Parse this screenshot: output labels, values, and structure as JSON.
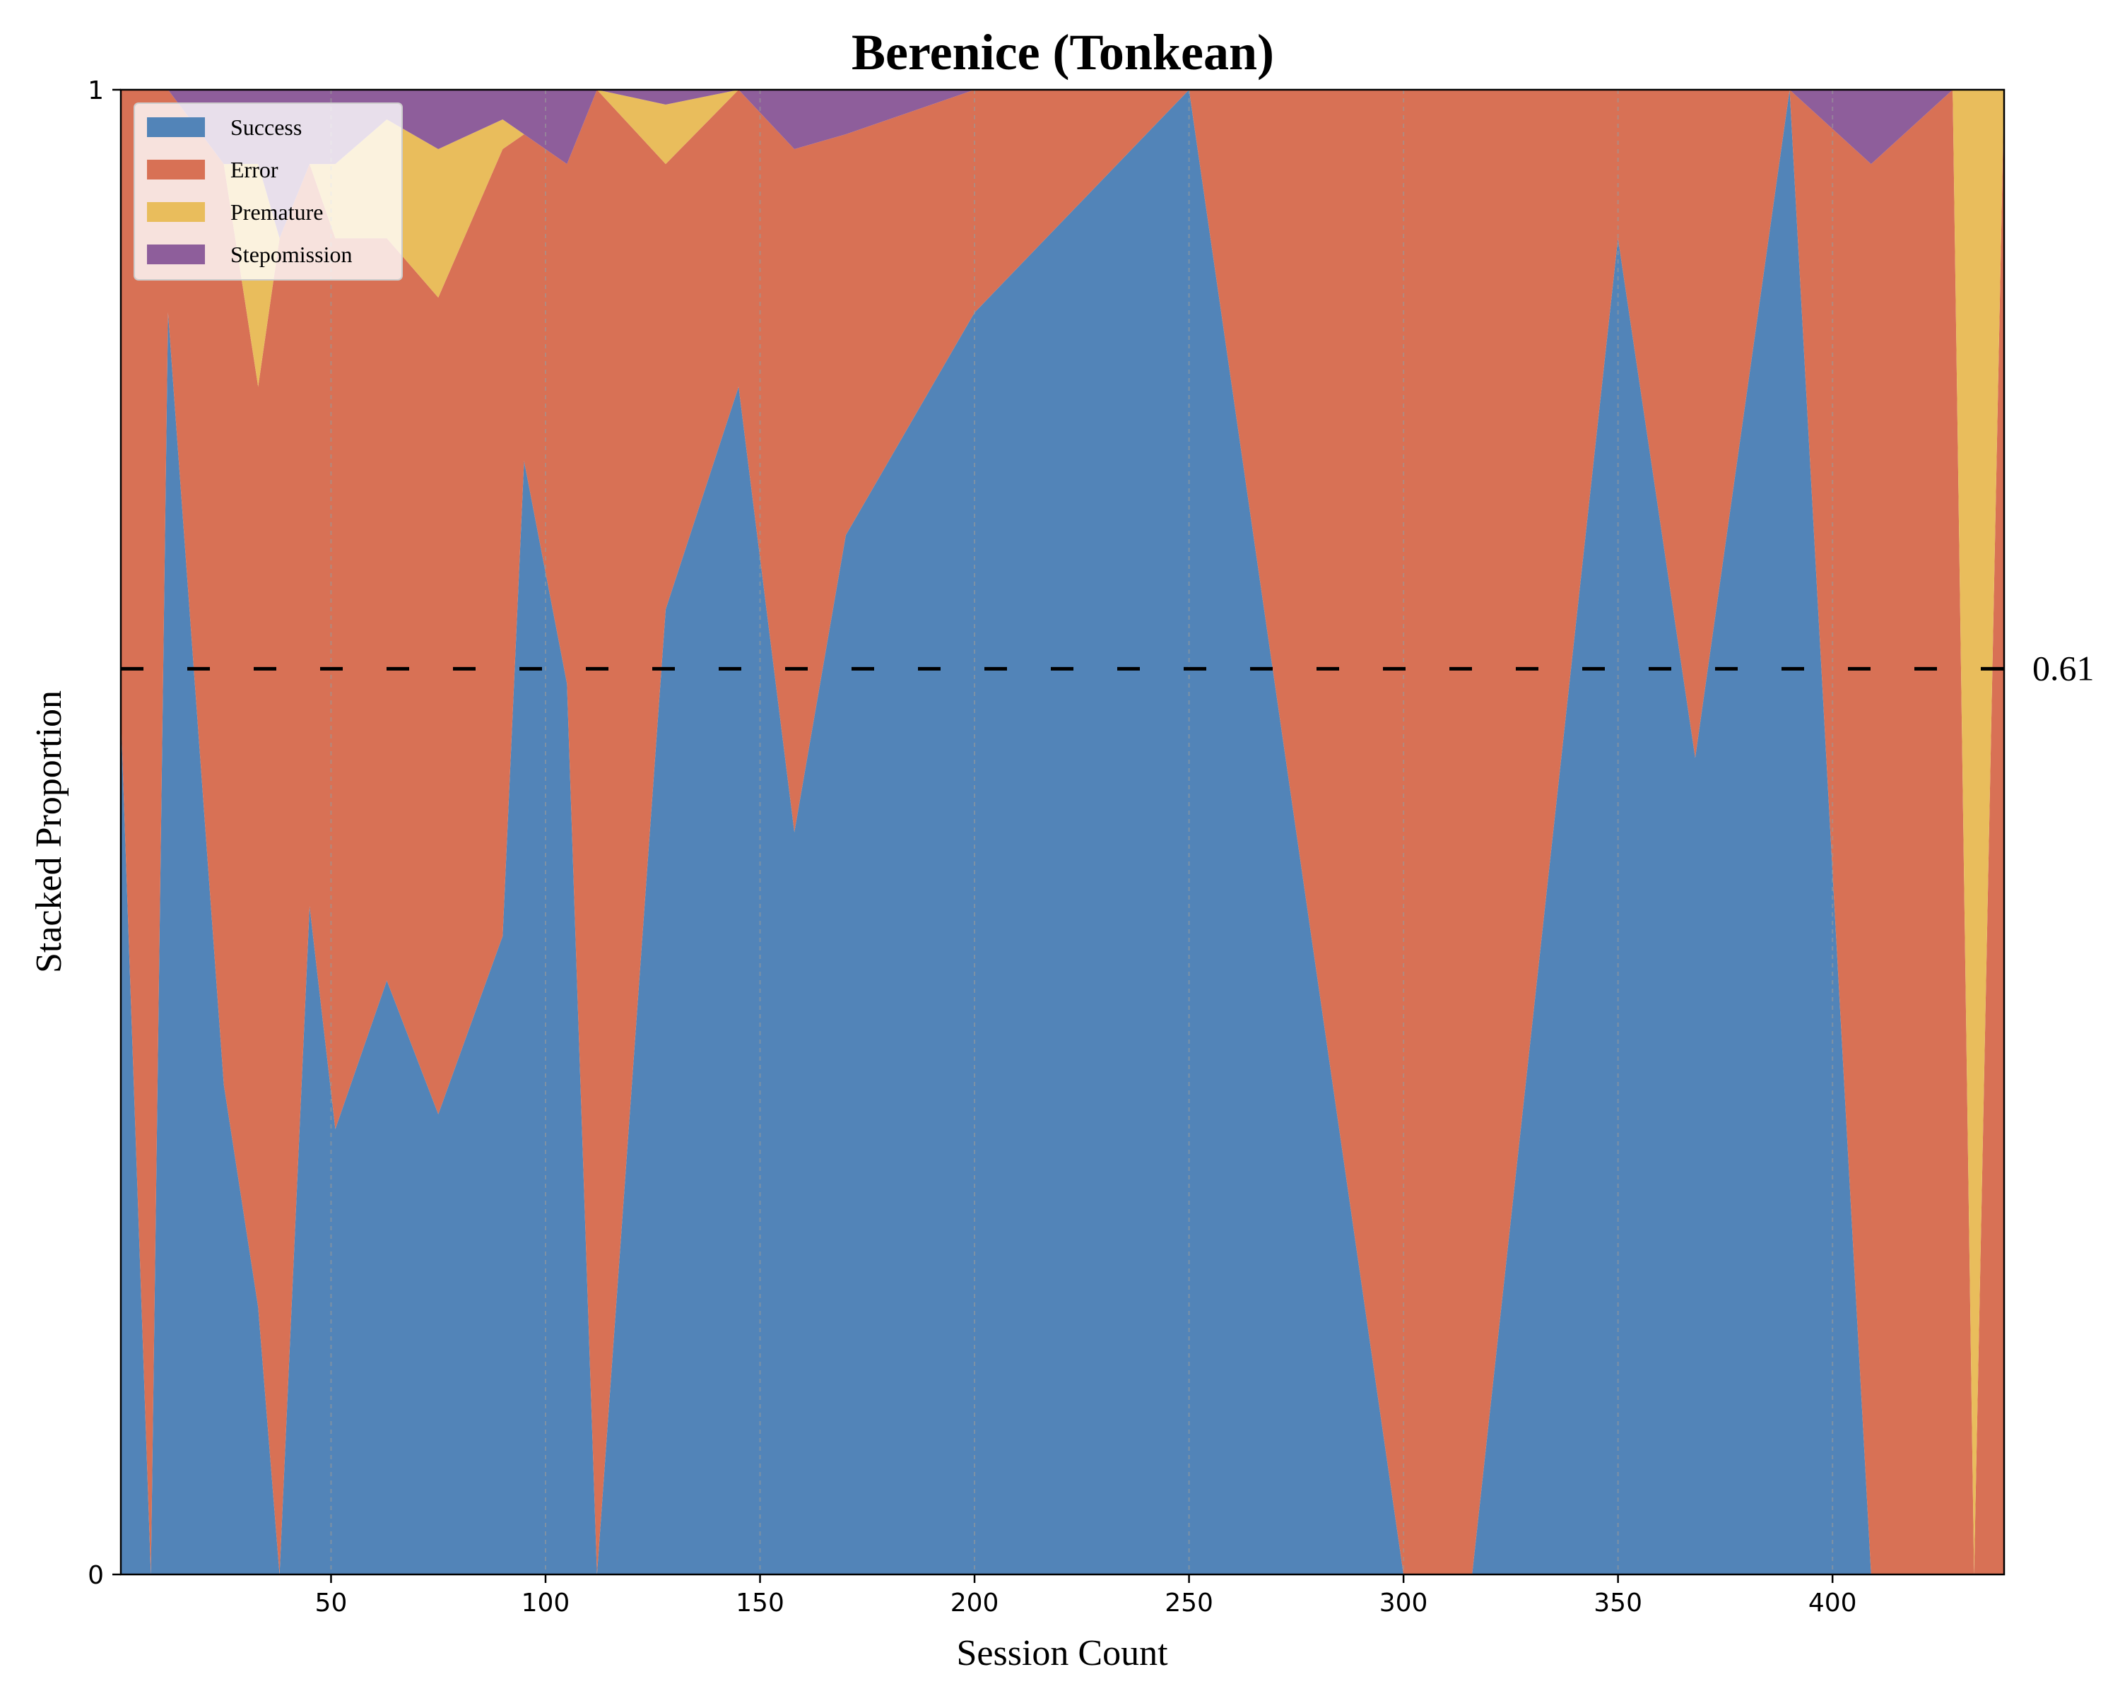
{
  "chart_data": {
    "type": "area",
    "stacked": true,
    "title": "Berenice (Tonkean)",
    "xlabel": "Session Count",
    "ylabel": "Stacked Proportion",
    "xlim": [
      1,
      440
    ],
    "ylim": [
      0,
      1
    ],
    "xticks": [
      50,
      100,
      150,
      200,
      250,
      300,
      350,
      400
    ],
    "yticks": [
      0,
      1
    ],
    "grid": "vertical dashed",
    "legend": {
      "position": "top-left"
    },
    "series": [
      {
        "name": "Success",
        "color": "#5284b8"
      },
      {
        "name": "Error",
        "color": "#d87155"
      },
      {
        "name": "Premature",
        "color": "#e9bd5c"
      },
      {
        "name": "Stepomission",
        "color": "#8e5e9b"
      }
    ],
    "reference_line": {
      "value": 0.61,
      "label": "0.61",
      "style": "dashed",
      "color": "#000000"
    },
    "key_points": [
      {
        "x": 1,
        "success": 0.58,
        "error": 0.42,
        "premature": 0.0,
        "stepomission": 0.0
      },
      {
        "x": 8,
        "success": 0.0,
        "error": 1.0,
        "premature": 0.0,
        "stepomission": 0.0
      },
      {
        "x": 12,
        "success": 0.85,
        "error": 0.15,
        "premature": 0.0,
        "stepomission": 0.0
      },
      {
        "x": 25,
        "success": 0.33,
        "error": 0.62,
        "premature": 0.0,
        "stepomission": 0.05
      },
      {
        "x": 33,
        "success": 0.18,
        "error": 0.62,
        "premature": 0.15,
        "stepomission": 0.05
      },
      {
        "x": 38,
        "success": 0.0,
        "error": 0.9,
        "premature": 0.0,
        "stepomission": 0.1
      },
      {
        "x": 45,
        "success": 0.45,
        "error": 0.5,
        "premature": 0.0,
        "stepomission": 0.05
      },
      {
        "x": 51,
        "success": 0.3,
        "error": 0.6,
        "premature": 0.05,
        "stepomission": 0.05
      },
      {
        "x": 63,
        "success": 0.4,
        "error": 0.5,
        "premature": 0.08,
        "stepomission": 0.02
      },
      {
        "x": 75,
        "success": 0.31,
        "error": 0.55,
        "premature": 0.1,
        "stepomission": 0.04
      },
      {
        "x": 90,
        "success": 0.43,
        "error": 0.53,
        "premature": 0.02,
        "stepomission": 0.02
      },
      {
        "x": 95,
        "success": 0.75,
        "error": 0.22,
        "premature": 0.0,
        "stepomission": 0.03
      },
      {
        "x": 105,
        "success": 0.6,
        "error": 0.35,
        "premature": 0.0,
        "stepomission": 0.05
      },
      {
        "x": 112,
        "success": 0.0,
        "error": 1.0,
        "premature": 0.0,
        "stepomission": 0.0
      },
      {
        "x": 128,
        "success": 0.65,
        "error": 0.3,
        "premature": 0.04,
        "stepomission": 0.01
      },
      {
        "x": 145,
        "success": 0.8,
        "error": 0.2,
        "premature": 0.0,
        "stepomission": 0.0
      },
      {
        "x": 158,
        "success": 0.5,
        "error": 0.46,
        "premature": 0.0,
        "stepomission": 0.04
      },
      {
        "x": 170,
        "success": 0.7,
        "error": 0.27,
        "premature": 0.0,
        "stepomission": 0.03
      },
      {
        "x": 200,
        "success": 0.85,
        "error": 0.15,
        "premature": 0.0,
        "stepomission": 0.0
      },
      {
        "x": 250,
        "success": 1.0,
        "error": 0.0,
        "premature": 0.0,
        "stepomission": 0.0
      },
      {
        "x": 300,
        "success": 0.0,
        "error": 1.0,
        "premature": 0.0,
        "stepomission": 0.0
      },
      {
        "x": 316,
        "success": 0.0,
        "error": 1.0,
        "premature": 0.0,
        "stepomission": 0.0
      },
      {
        "x": 350,
        "success": 0.9,
        "error": 0.1,
        "premature": 0.0,
        "stepomission": 0.0
      },
      {
        "x": 368,
        "success": 0.55,
        "error": 0.45,
        "premature": 0.0,
        "stepomission": 0.0
      },
      {
        "x": 390,
        "success": 1.0,
        "error": 0.0,
        "premature": 0.0,
        "stepomission": 0.0
      },
      {
        "x": 409,
        "success": 0.0,
        "error": 0.95,
        "premature": 0.0,
        "stepomission": 0.05
      },
      {
        "x": 428,
        "success": 0.0,
        "error": 1.0,
        "premature": 0.0,
        "stepomission": 0.0
      },
      {
        "x": 433,
        "success": 0.0,
        "error": 0.0,
        "premature": 1.0,
        "stepomission": 0.0
      },
      {
        "x": 440,
        "success": 0.0,
        "error": 1.0,
        "premature": 0.0,
        "stepomission": 0.0
      }
    ]
  }
}
